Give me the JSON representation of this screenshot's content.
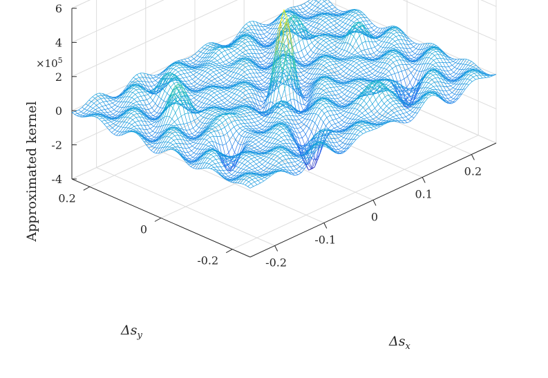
{
  "chart_data": {
    "type": "surface-mesh",
    "title": "",
    "xlabel": "Δs",
    "xlabel_sub": "x",
    "ylabel": "Δs",
    "ylabel_sub": "y",
    "zlabel": "Approximated kernel",
    "z_scale_prefix": "×10",
    "z_scale_exp": "5",
    "xlim": [
      -0.25,
      0.25
    ],
    "ylim": [
      -0.25,
      0.25
    ],
    "zlim": [
      -4,
      6
    ],
    "x_ticks": [
      -0.2,
      -0.1,
      0,
      0.1,
      0.2
    ],
    "x_tick_labels": [
      "-0.2",
      "-0.1",
      "0",
      "0.1",
      "0.2"
    ],
    "y_ticks": [
      -0.2,
      0,
      0.2
    ],
    "y_tick_labels": [
      "-0.2",
      "0",
      "0.2"
    ],
    "z_ticks": [
      -4,
      -2,
      0,
      2,
      4,
      6
    ],
    "z_tick_labels": [
      "-4",
      "-2",
      "0",
      "2",
      "4",
      "6"
    ],
    "grid": true,
    "colormap": "parula",
    "peak": {
      "x": 0,
      "y": 0,
      "z": 4.4
    },
    "features": [
      {
        "x": -0.16,
        "y": 0.07,
        "z": 1.6
      },
      {
        "x": -0.13,
        "y": -0.02,
        "z": 0.9
      },
      {
        "x": 0.12,
        "y": 0.13,
        "z": 1.5
      },
      {
        "x": 0.18,
        "y": 0.04,
        "z": 1.2
      },
      {
        "x": 0.07,
        "y": -0.16,
        "z": 1.3
      },
      {
        "x": -0.05,
        "y": -0.15,
        "z": -2.6
      },
      {
        "x": -0.16,
        "y": -0.07,
        "z": -1.8
      },
      {
        "x": 0.16,
        "y": -0.12,
        "z": -1.6
      },
      {
        "x": -0.12,
        "y": 0.17,
        "z": 1.0
      },
      {
        "x": 0.02,
        "y": 0.2,
        "z": 0.8
      }
    ]
  }
}
